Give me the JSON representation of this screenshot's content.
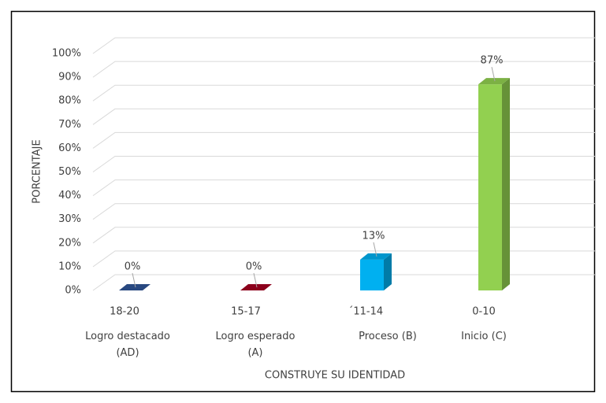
{
  "chart_data": {
    "type": "bar3d",
    "categories": [
      "18-20",
      "15-17",
      "´11-14",
      "0-10"
    ],
    "descriptions": [
      "Logro destacado (AD)",
      "Logro esperado (A)",
      "Proceso (B)",
      "Inicio (C)"
    ],
    "values": [
      0,
      0,
      13,
      87
    ],
    "value_labels": [
      "0%",
      "0%",
      "13%",
      "87%"
    ],
    "colors": [
      "#2f5597",
      "#a50021",
      "#00b0f0",
      "#92d050"
    ],
    "x_label": "CONSTRUYE SU IDENTIDAD",
    "y_label": "PORCENTAJE",
    "ylim": [
      0,
      100
    ],
    "yticks": [
      {
        "value": 0,
        "label": "0%"
      },
      {
        "value": 10,
        "label": "10%"
      },
      {
        "value": 20,
        "label": "20%"
      },
      {
        "value": 30,
        "label": "30%"
      },
      {
        "value": 40,
        "label": "40%"
      },
      {
        "value": 50,
        "label": "50%"
      },
      {
        "value": 60,
        "label": "60%"
      },
      {
        "value": 70,
        "label": "70%"
      },
      {
        "value": 80,
        "label": "80%"
      },
      {
        "value": 90,
        "label": "90%"
      },
      {
        "value": 100,
        "label": "100%"
      }
    ],
    "grid": true
  }
}
